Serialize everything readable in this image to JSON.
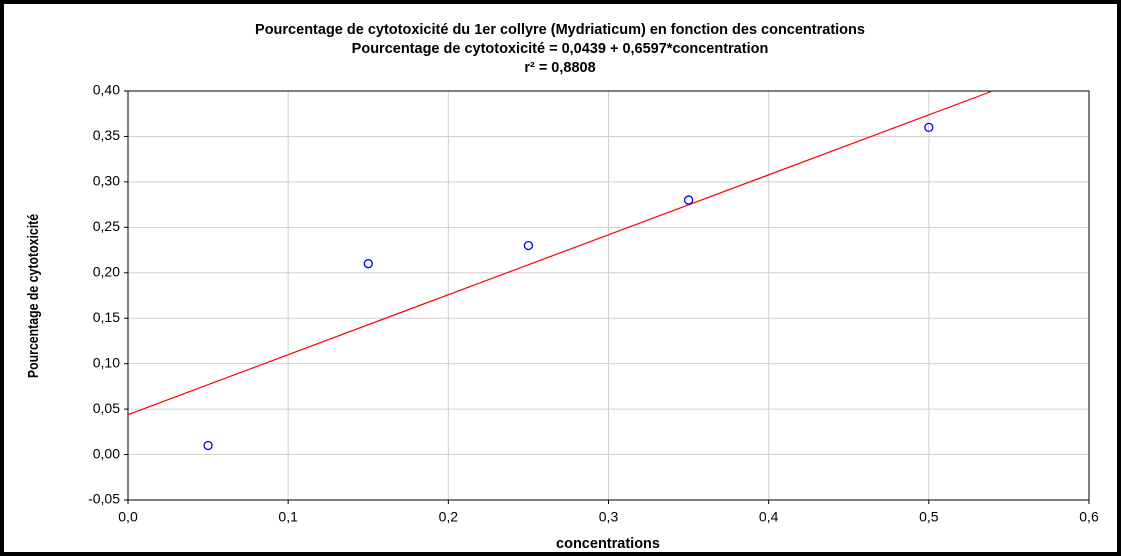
{
  "chart_data": {
    "type": "scatter",
    "title": "Pourcentage de cytotoxicité du 1er collyre (Mydriaticum) en fonction des concentrations",
    "subtitle": "Pourcentage de cytotoxicité  = 0,0439 + 0,6597*concentration",
    "annotation": "r² = 0,8808",
    "xlabel": "concentrations",
    "ylabel": "Pourcentage de cytotoxicité",
    "x": [
      0.05,
      0.15,
      0.25,
      0.35,
      0.5
    ],
    "values": [
      0.01,
      0.21,
      0.23,
      0.28,
      0.36
    ],
    "color": "#0000ff",
    "fit": {
      "intercept": 0.0439,
      "slope": 0.6597,
      "color": "#ff0000"
    },
    "xlim": [
      0,
      0.6
    ],
    "ylim": [
      -0.05,
      0.4
    ],
    "xticks": [
      {
        "value": 0,
        "label": "0,0"
      },
      {
        "value": 0.1,
        "label": "0,1"
      },
      {
        "value": 0.2,
        "label": "0,2"
      },
      {
        "value": 0.3,
        "label": "0,3"
      },
      {
        "value": 0.4,
        "label": "0,4"
      },
      {
        "value": 0.5,
        "label": "0,5"
      },
      {
        "value": 0.6,
        "label": "0,6"
      }
    ],
    "yticks": [
      {
        "value": -0.05,
        "label": "-0,05"
      },
      {
        "value": 0,
        "label": "0,00"
      },
      {
        "value": 0.05,
        "label": "0,05"
      },
      {
        "value": 0.1,
        "label": "0,10"
      },
      {
        "value": 0.15,
        "label": "0,15"
      },
      {
        "value": 0.2,
        "label": "0,20"
      },
      {
        "value": 0.25,
        "label": "0,25"
      },
      {
        "value": 0.3,
        "label": "0,30"
      },
      {
        "value": 0.35,
        "label": "0,35"
      },
      {
        "value": 0.4,
        "label": "0,40"
      }
    ],
    "grid": true
  }
}
